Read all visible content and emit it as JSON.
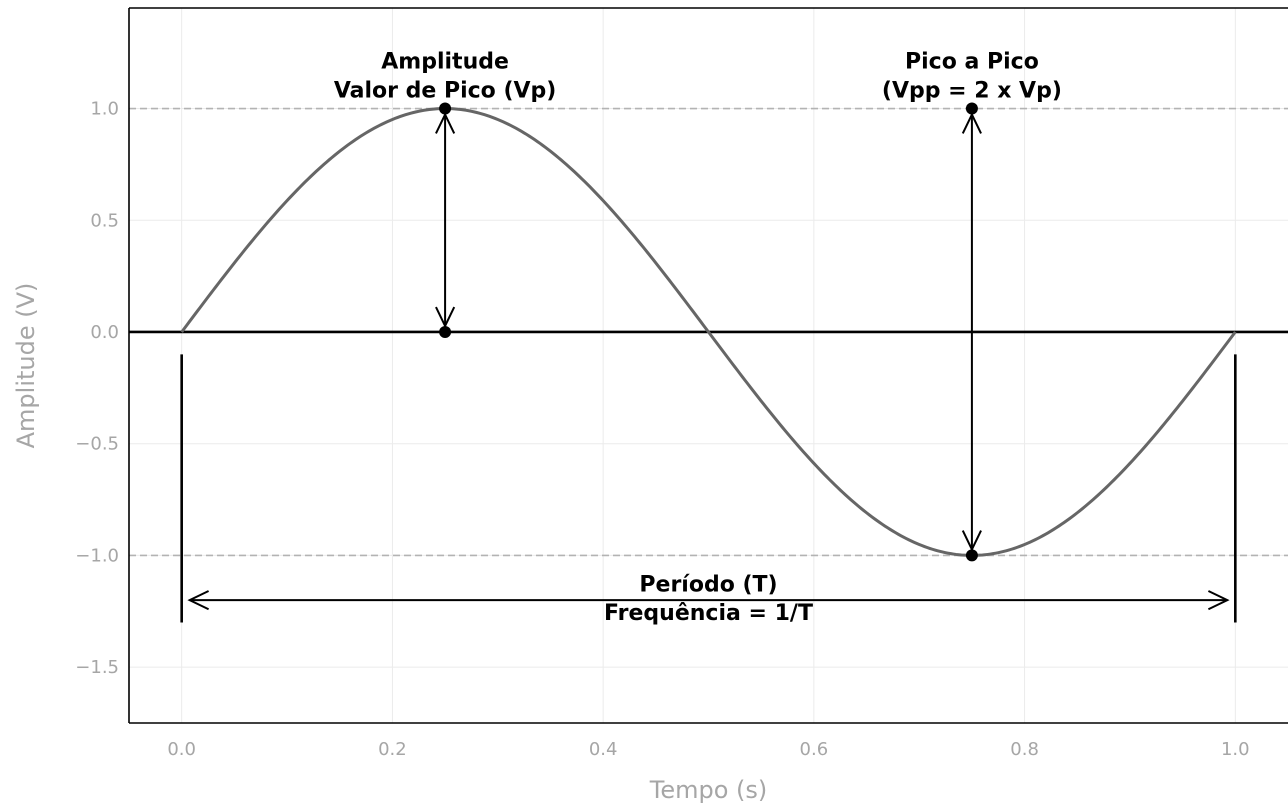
{
  "chart_data": {
    "type": "line",
    "title": "",
    "xlabel": "Tempo (s)",
    "ylabel": "Amplitude (V)",
    "xlim": [
      -0.05,
      1.05
    ],
    "ylim": [
      -1.75,
      1.45
    ],
    "xticks": [
      0.0,
      0.2,
      0.4,
      0.6,
      0.8,
      1.0
    ],
    "xtick_labels": [
      "0.0",
      "0.2",
      "0.4",
      "0.6",
      "0.8",
      "1.0"
    ],
    "yticks": [
      1.0,
      0.5,
      0.0,
      -0.5,
      -1.0,
      -1.5
    ],
    "ytick_labels": [
      "1.0",
      "0.5",
      "0.0",
      "−0.5",
      "−1.0",
      "−1.5"
    ],
    "grid": true,
    "series": [
      {
        "function": "sin(2*pi*t)",
        "x_range": [
          0.0,
          1.0
        ],
        "color": "#666666"
      }
    ],
    "reference_lines": {
      "horizontal_solid": [
        0.0
      ],
      "horizontal_dashed": [
        1.0,
        -1.0
      ],
      "vertical_bars": [
        0.0,
        1.0
      ]
    },
    "markers": [
      {
        "x": 0.25,
        "y": 1.0
      },
      {
        "x": 0.25,
        "y": 0.0
      },
      {
        "x": 0.75,
        "y": 1.0
      },
      {
        "x": 0.75,
        "y": -1.0
      }
    ],
    "annotations": [
      {
        "lines": [
          "Amplitude",
          "Valor de Pico (Vp)"
        ],
        "x": 0.25,
        "y_baseline": 1.07
      },
      {
        "lines": [
          "Pico a Pico",
          "(Vpp = 2 x Vp)"
        ],
        "x": 0.75,
        "y_baseline": 1.07
      },
      {
        "lines": [
          "Período (T)",
          "Frequência = 1/T"
        ],
        "x": 0.5,
        "y_baseline": -1.27
      }
    ],
    "arrows": [
      {
        "type": "double",
        "from": [
          0.25,
          1.0
        ],
        "to": [
          0.25,
          0.0
        ]
      },
      {
        "type": "double",
        "from": [
          0.75,
          1.0
        ],
        "to": [
          0.75,
          -1.0
        ]
      },
      {
        "type": "double",
        "from": [
          0.0,
          -1.2
        ],
        "to": [
          1.0,
          -1.2
        ]
      }
    ],
    "colors": {
      "curve": "#666666",
      "grid": "#ebebeb",
      "dashed": "#b3b3b3",
      "ink": "#000000",
      "tick_text": "#a6a6a6"
    }
  }
}
